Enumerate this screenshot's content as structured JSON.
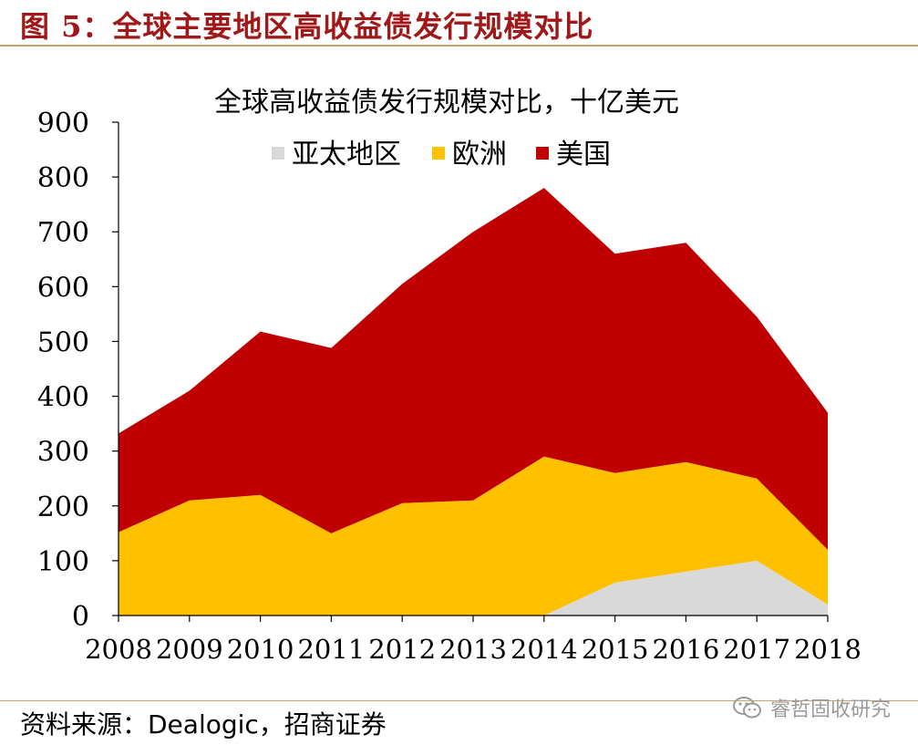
{
  "figure": {
    "title": "图 5：全球主要地区高收益债发行规模对比",
    "source": "资料来源：Dealogic，招商证券",
    "watermark": "睿哲固收研究"
  },
  "chart_data": {
    "type": "area",
    "stacked": true,
    "title": "全球高收益债发行规模对比，十亿美元",
    "xlabel": "",
    "ylabel": "",
    "x": [
      "2008",
      "2009",
      "2010",
      "2011",
      "2012",
      "2013",
      "2014",
      "2015",
      "2016",
      "2017",
      "2018"
    ],
    "ylim": [
      0,
      900
    ],
    "yticks": [
      0,
      100,
      200,
      300,
      400,
      500,
      600,
      700,
      800,
      900
    ],
    "grid": false,
    "legend_position": "top",
    "series": [
      {
        "name": "亚太地区",
        "color": "#d9d9d9",
        "values": [
          0,
          0,
          0,
          0,
          0,
          0,
          0,
          60,
          80,
          100,
          20
        ]
      },
      {
        "name": "欧洲",
        "color": "#ffc000",
        "values": [
          152,
          210,
          220,
          150,
          205,
          210,
          290,
          200,
          200,
          150,
          100
        ]
      },
      {
        "name": "美国",
        "color": "#c00000",
        "values": [
          180,
          200,
          298,
          338,
          400,
          490,
          490,
          400,
          400,
          295,
          250
        ]
      }
    ]
  }
}
